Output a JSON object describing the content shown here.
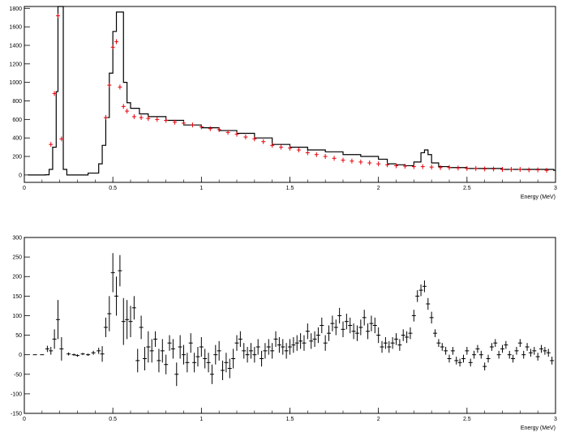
{
  "chart_data": [
    {
      "type": "line",
      "xlabel": "Energy (MeV)",
      "xlim": [
        0,
        3
      ],
      "ylim": [
        -80,
        1820
      ],
      "xticks": [
        0,
        0.5,
        1,
        1.5,
        2,
        2.5,
        3
      ],
      "xtick_labels": [
        "0",
        "0.5",
        "1",
        "1.5",
        "2",
        "2.5",
        "3"
      ],
      "yticks": [
        0,
        200,
        400,
        600,
        800,
        1000,
        1200,
        1400,
        1600,
        1800
      ],
      "ytick_labels": [
        "0",
        "200",
        "400",
        "600",
        "800",
        "1000",
        "1200",
        "1400",
        "1600",
        "1800"
      ],
      "series": [
        {
          "style": "histogram",
          "color": "#000000",
          "x": [
            0.02,
            0.12,
            0.14,
            0.16,
            0.18,
            0.19,
            0.2,
            0.22,
            0.24,
            0.3,
            0.36,
            0.42,
            0.44,
            0.46,
            0.48,
            0.5,
            0.52,
            0.54,
            0.56,
            0.58,
            0.6,
            0.65,
            0.7,
            0.8,
            0.9,
            1.0,
            1.1,
            1.2,
            1.3,
            1.4,
            1.5,
            1.6,
            1.7,
            1.8,
            1.9,
            2.0,
            2.05,
            2.1,
            2.15,
            2.2,
            2.24,
            2.26,
            2.28,
            2.3,
            2.34,
            2.4,
            2.5,
            2.6,
            2.7,
            2.8,
            2.9,
            2.99
          ],
          "y": [
            0,
            2,
            60,
            300,
            900,
            1820,
            1820,
            60,
            0,
            0,
            20,
            120,
            320,
            620,
            1100,
            1550,
            1760,
            1760,
            1000,
            780,
            720,
            660,
            630,
            590,
            540,
            510,
            480,
            450,
            400,
            330,
            300,
            270,
            250,
            220,
            200,
            170,
            120,
            110,
            100,
            140,
            240,
            270,
            220,
            130,
            90,
            80,
            70,
            70,
            60,
            60,
            60,
            50
          ]
        },
        {
          "style": "crosses",
          "color": "#e8000b",
          "x": [
            0.15,
            0.17,
            0.19,
            0.21,
            0.46,
            0.48,
            0.5,
            0.52,
            0.54,
            0.56,
            0.58,
            0.62,
            0.66,
            0.7,
            0.75,
            0.8,
            0.85,
            0.9,
            0.95,
            1.0,
            1.05,
            1.1,
            1.15,
            1.2,
            1.25,
            1.3,
            1.35,
            1.4,
            1.45,
            1.5,
            1.55,
            1.6,
            1.65,
            1.7,
            1.75,
            1.8,
            1.85,
            1.9,
            1.95,
            2.0,
            2.05,
            2.1,
            2.15,
            2.2,
            2.25,
            2.3,
            2.35,
            2.4,
            2.45,
            2.5,
            2.55,
            2.6,
            2.65,
            2.7,
            2.75,
            2.8,
            2.85,
            2.9,
            2.95
          ],
          "y": [
            330,
            880,
            1720,
            390,
            620,
            970,
            1380,
            1440,
            950,
            740,
            690,
            630,
            620,
            610,
            600,
            590,
            570,
            560,
            540,
            520,
            500,
            490,
            460,
            440,
            410,
            390,
            360,
            320,
            300,
            290,
            270,
            240,
            220,
            200,
            180,
            160,
            150,
            140,
            130,
            120,
            110,
            100,
            95,
            90,
            90,
            85,
            80,
            80,
            75,
            70,
            70,
            65,
            65,
            60,
            60,
            60,
            55,
            55,
            50
          ]
        }
      ]
    },
    {
      "type": "scatter",
      "style": "error-bars",
      "color": "#000000",
      "xlabel": "Energy (MeV)",
      "xlim": [
        0,
        3
      ],
      "ylim": [
        -150,
        300
      ],
      "xticks": [
        0,
        0.5,
        1,
        1.5,
        2,
        2.5,
        3
      ],
      "xtick_labels": [
        "0",
        "0.5",
        "1",
        "1.5",
        "2",
        "2.5",
        "3"
      ],
      "yticks": [
        -150,
        -100,
        -50,
        0,
        50,
        100,
        150,
        200,
        250,
        300
      ],
      "ytick_labels": [
        "-150",
        "-100",
        "-50",
        "0",
        "50",
        "100",
        "150",
        "200",
        "250",
        "300"
      ],
      "points": [
        [
          0.06,
          0,
          0
        ],
        [
          0.1,
          0,
          0
        ],
        [
          0.13,
          15,
          8
        ],
        [
          0.15,
          10,
          10
        ],
        [
          0.17,
          40,
          25
        ],
        [
          0.19,
          90,
          50
        ],
        [
          0.21,
          15,
          30
        ],
        [
          0.25,
          2,
          4
        ],
        [
          0.28,
          0,
          3
        ],
        [
          0.3,
          -2,
          3
        ],
        [
          0.33,
          2,
          3
        ],
        [
          0.36,
          0,
          3
        ],
        [
          0.39,
          5,
          5
        ],
        [
          0.42,
          10,
          8
        ],
        [
          0.44,
          2,
          20
        ],
        [
          0.46,
          70,
          25
        ],
        [
          0.48,
          105,
          45
        ],
        [
          0.5,
          210,
          50
        ],
        [
          0.52,
          150,
          50
        ],
        [
          0.54,
          215,
          40
        ],
        [
          0.56,
          85,
          60
        ],
        [
          0.58,
          90,
          50
        ],
        [
          0.6,
          85,
          40
        ],
        [
          0.62,
          120,
          30
        ],
        [
          0.64,
          -15,
          30
        ],
        [
          0.66,
          70,
          30
        ],
        [
          0.68,
          -10,
          30
        ],
        [
          0.7,
          20,
          40
        ],
        [
          0.72,
          10,
          30
        ],
        [
          0.74,
          40,
          20
        ],
        [
          0.76,
          -15,
          30
        ],
        [
          0.78,
          10,
          30
        ],
        [
          0.8,
          -25,
          25
        ],
        [
          0.82,
          30,
          20
        ],
        [
          0.84,
          15,
          25
        ],
        [
          0.86,
          -50,
          30
        ],
        [
          0.88,
          20,
          30
        ],
        [
          0.9,
          0,
          25
        ],
        [
          0.92,
          -20,
          25
        ],
        [
          0.94,
          30,
          25
        ],
        [
          0.96,
          -20,
          25
        ],
        [
          0.98,
          -5,
          25
        ],
        [
          1.0,
          20,
          25
        ],
        [
          1.02,
          -10,
          25
        ],
        [
          1.04,
          -20,
          25
        ],
        [
          1.06,
          -50,
          25
        ],
        [
          1.08,
          0,
          25
        ],
        [
          1.1,
          10,
          25
        ],
        [
          1.12,
          -40,
          25
        ],
        [
          1.14,
          -20,
          25
        ],
        [
          1.16,
          -35,
          25
        ],
        [
          1.18,
          -10,
          25
        ],
        [
          1.2,
          30,
          20
        ],
        [
          1.22,
          40,
          20
        ],
        [
          1.24,
          10,
          20
        ],
        [
          1.26,
          0,
          20
        ],
        [
          1.28,
          10,
          20
        ],
        [
          1.3,
          0,
          20
        ],
        [
          1.32,
          20,
          20
        ],
        [
          1.34,
          -10,
          20
        ],
        [
          1.36,
          10,
          20
        ],
        [
          1.38,
          20,
          20
        ],
        [
          1.4,
          10,
          20
        ],
        [
          1.42,
          40,
          20
        ],
        [
          1.44,
          25,
          20
        ],
        [
          1.46,
          20,
          20
        ],
        [
          1.48,
          10,
          20
        ],
        [
          1.5,
          20,
          20
        ],
        [
          1.52,
          25,
          20
        ],
        [
          1.54,
          30,
          20
        ],
        [
          1.56,
          35,
          20
        ],
        [
          1.58,
          30,
          20
        ],
        [
          1.6,
          60,
          20
        ],
        [
          1.62,
          35,
          20
        ],
        [
          1.64,
          40,
          20
        ],
        [
          1.66,
          50,
          20
        ],
        [
          1.68,
          75,
          20
        ],
        [
          1.7,
          30,
          20
        ],
        [
          1.72,
          55,
          20
        ],
        [
          1.74,
          80,
          20
        ],
        [
          1.76,
          70,
          20
        ],
        [
          1.78,
          100,
          20
        ],
        [
          1.8,
          65,
          20
        ],
        [
          1.82,
          85,
          20
        ],
        [
          1.84,
          75,
          20
        ],
        [
          1.86,
          60,
          20
        ],
        [
          1.88,
          55,
          20
        ],
        [
          1.9,
          70,
          20
        ],
        [
          1.92,
          95,
          20
        ],
        [
          1.94,
          60,
          20
        ],
        [
          1.96,
          80,
          20
        ],
        [
          1.98,
          75,
          20
        ],
        [
          2.0,
          50,
          20
        ],
        [
          2.02,
          20,
          15
        ],
        [
          2.04,
          30,
          15
        ],
        [
          2.06,
          20,
          15
        ],
        [
          2.08,
          30,
          15
        ],
        [
          2.1,
          40,
          15
        ],
        [
          2.12,
          25,
          15
        ],
        [
          2.14,
          50,
          15
        ],
        [
          2.16,
          45,
          15
        ],
        [
          2.18,
          55,
          15
        ],
        [
          2.2,
          100,
          15
        ],
        [
          2.22,
          150,
          15
        ],
        [
          2.24,
          165,
          15
        ],
        [
          2.26,
          175,
          15
        ],
        [
          2.28,
          130,
          15
        ],
        [
          2.3,
          95,
          15
        ],
        [
          2.32,
          55,
          10
        ],
        [
          2.34,
          30,
          10
        ],
        [
          2.36,
          20,
          10
        ],
        [
          2.38,
          10,
          10
        ],
        [
          2.4,
          -10,
          10
        ],
        [
          2.42,
          10,
          10
        ],
        [
          2.44,
          -15,
          10
        ],
        [
          2.46,
          -20,
          10
        ],
        [
          2.48,
          -10,
          10
        ],
        [
          2.5,
          10,
          10
        ],
        [
          2.52,
          -20,
          10
        ],
        [
          2.54,
          0,
          10
        ],
        [
          2.56,
          15,
          10
        ],
        [
          2.58,
          0,
          10
        ],
        [
          2.6,
          -30,
          10
        ],
        [
          2.62,
          -10,
          10
        ],
        [
          2.64,
          20,
          10
        ],
        [
          2.66,
          30,
          10
        ],
        [
          2.68,
          0,
          10
        ],
        [
          2.7,
          15,
          10
        ],
        [
          2.72,
          25,
          10
        ],
        [
          2.74,
          0,
          10
        ],
        [
          2.76,
          -10,
          10
        ],
        [
          2.78,
          10,
          10
        ],
        [
          2.8,
          30,
          10
        ],
        [
          2.82,
          0,
          10
        ],
        [
          2.84,
          20,
          10
        ],
        [
          2.86,
          5,
          10
        ],
        [
          2.88,
          10,
          10
        ],
        [
          2.9,
          -5,
          10
        ],
        [
          2.92,
          15,
          10
        ],
        [
          2.94,
          10,
          10
        ],
        [
          2.96,
          5,
          10
        ],
        [
          2.98,
          -15,
          10
        ]
      ]
    }
  ]
}
